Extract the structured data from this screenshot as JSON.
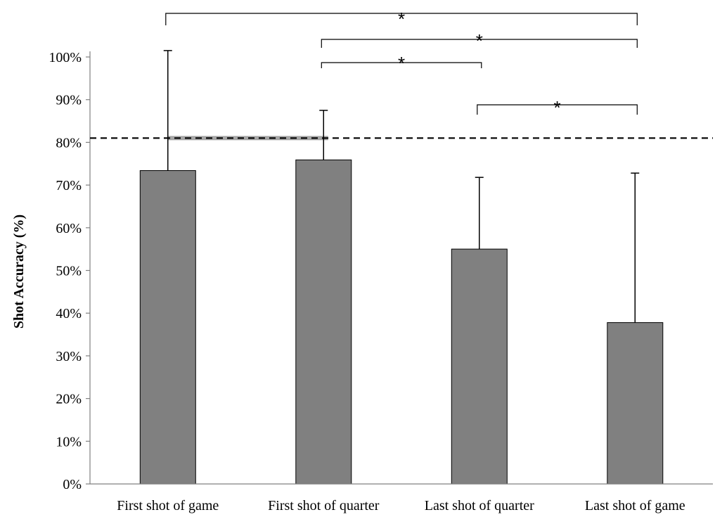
{
  "chart_data": {
    "type": "bar",
    "title": "",
    "xlabel": "",
    "ylabel": "Shot Accuracy (%)",
    "categories": [
      "First shot of game",
      "First shot of quarter",
      "Last shot of quarter",
      "Last shot of game"
    ],
    "values": [
      73.4,
      75.9,
      55.0,
      37.8
    ],
    "error_upper": [
      101.5,
      87.5,
      71.8,
      72.8
    ],
    "ylim": [
      0,
      100
    ],
    "yticks": [
      0,
      10,
      20,
      30,
      40,
      50,
      60,
      70,
      80,
      90,
      100
    ],
    "ytick_labels": [
      "0%",
      "10%",
      "20%",
      "30%",
      "40%",
      "50%",
      "60%",
      "70%",
      "80%",
      "90%",
      "100%"
    ],
    "reference_line": {
      "value": 81,
      "style": "dashed"
    },
    "significance_brackets": [
      {
        "from": 0,
        "to": 3,
        "label": "*"
      },
      {
        "from": 1,
        "to": 3,
        "label": "*"
      },
      {
        "from": 1,
        "to": 2,
        "label": "*"
      },
      {
        "from": 2,
        "to": 3,
        "label": "*"
      }
    ],
    "grid": false,
    "legend": "none",
    "colors": {
      "bar_fill": "#808080",
      "bar_stroke": "#000000",
      "axis": "#808080",
      "text": "#000000",
      "highlight_segment": "#a6a6a6"
    }
  }
}
